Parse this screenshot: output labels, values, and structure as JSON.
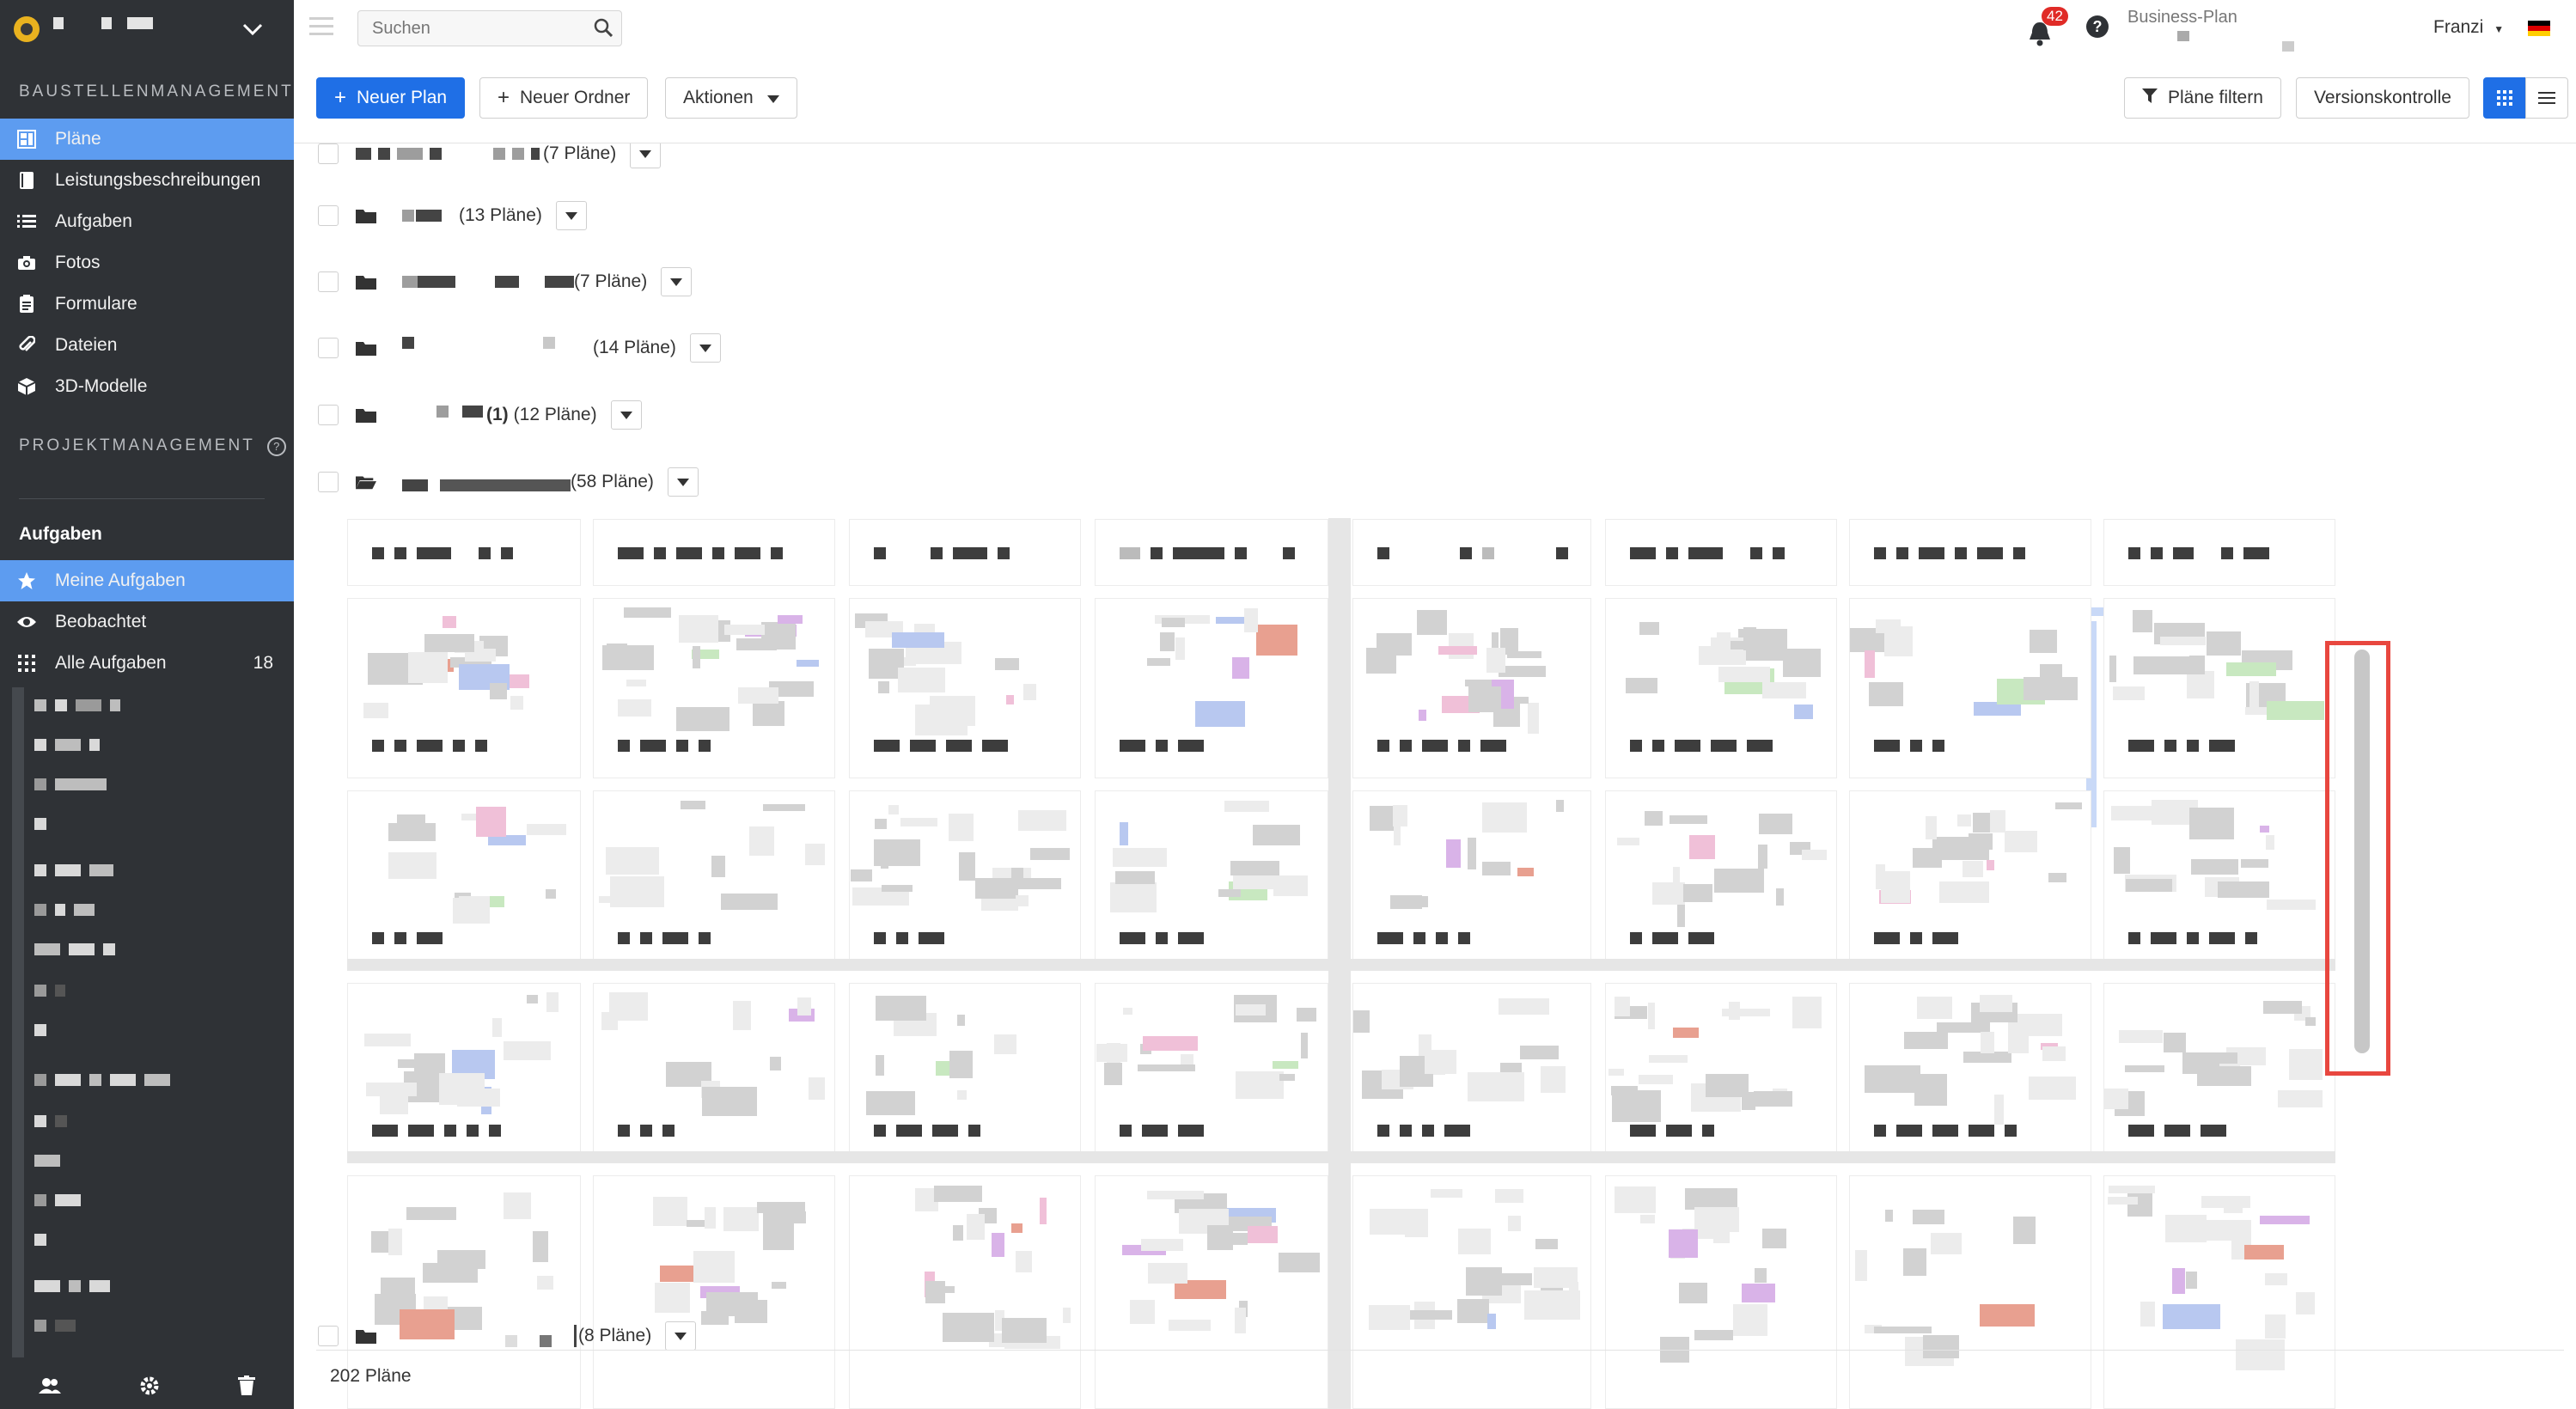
{
  "sidebar": {
    "section_site": "BAUSTELLENMANAGEMENT",
    "nav": [
      {
        "label": "Pläne",
        "icon": "plans-icon",
        "active": true
      },
      {
        "label": "Leistungsbeschreibungen",
        "icon": "book-icon",
        "active": false
      },
      {
        "label": "Aufgaben",
        "icon": "list-icon",
        "active": false
      },
      {
        "label": "Fotos",
        "icon": "camera-icon",
        "active": false
      },
      {
        "label": "Formulare",
        "icon": "clipboard-icon",
        "active": false
      },
      {
        "label": "Dateien",
        "icon": "paperclip-icon",
        "active": false
      },
      {
        "label": "3D-Modelle",
        "icon": "cube-icon",
        "active": false
      }
    ],
    "section_project": "PROJEKTMANAGEMENT",
    "tasks_heading": "Aufgaben",
    "task_nav": [
      {
        "label": "Meine Aufgaben",
        "icon": "star-icon",
        "active": true
      },
      {
        "label": "Beobachtet",
        "icon": "eye-icon",
        "active": false
      },
      {
        "label": "Alle Aufgaben",
        "icon": "grid-icon",
        "active": false,
        "count": "18"
      }
    ],
    "footer_icons": [
      "users-icon",
      "gear-icon",
      "trash-icon"
    ]
  },
  "topbar": {
    "search_placeholder": "Suchen",
    "notification_count": "42",
    "help_label": "?",
    "plan_label": "Business-Plan",
    "user_name": "Franzi",
    "flag_colors": [
      "#000000",
      "#dd0000",
      "#ffce00"
    ]
  },
  "toolbar": {
    "new_plan": "Neuer Plan",
    "new_folder": "Neuer Ordner",
    "actions": "Aktionen",
    "filter": "Pläne filtern",
    "version_control": "Versionskontrolle"
  },
  "folders": [
    {
      "count": "(7 Pläne)"
    },
    {
      "count": "(13 Pläne)"
    },
    {
      "count": "(7 Pläne)"
    },
    {
      "count": "(14 Pläne)"
    },
    {
      "prefix": "(1)",
      "count": "(12 Pläne)"
    },
    {
      "count": "(58 Pläne)"
    },
    {
      "count": "(8 Pläne)"
    }
  ],
  "footer": {
    "total": "202 Pläne"
  },
  "colors": {
    "sidebar_bg": "#2f3236",
    "accent_blue": "#1f6fe6",
    "active_item": "#5d9cf0",
    "highlight_red": "#e8473f",
    "badge_red": "#e02b27"
  }
}
